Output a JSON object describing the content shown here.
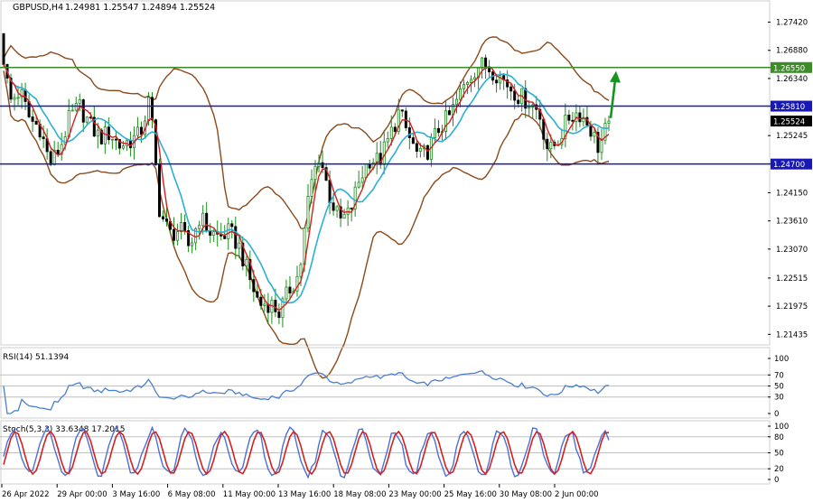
{
  "header": {
    "symbol": "GBPUSD,H4",
    "ohlc": "1.24981 1.25547 1.24894 1.25524"
  },
  "colors": {
    "candle": "#1e8c1e",
    "bollinger": "#8b4a1a",
    "ma_fast": "#d42020",
    "ma_slow": "#2ab0d4",
    "hline_green": "#3c8c28",
    "hline_blue": "#1818b4",
    "rsi_line": "#4a7fd0",
    "stoch_main": "#4a6fd8",
    "stoch_signal": "#d42020",
    "arrow": "#14961e"
  },
  "chart_data": [
    {
      "type": "candlestick",
      "panel": "main",
      "y_axis_ticks": [
        "1.27420",
        "1.26880",
        "1.26340",
        "1.25810",
        "1.25245",
        "1.24700",
        "1.24150",
        "1.23610",
        "1.23070",
        "1.22515",
        "1.21975",
        "1.21435"
      ],
      "ylim": [
        1.2125,
        1.2781
      ],
      "x_axis_labels": [
        "26 Apr 2022",
        "29 Apr 00:00",
        "3 May 16:00",
        "6 May 08:00",
        "11 May 00:00",
        "13 May 16:00",
        "18 May 08:00",
        "23 May 00:00",
        "25 May 16:00",
        "30 May 08:00",
        "2 Jun 00:00"
      ],
      "price_path": [
        1.272,
        1.259,
        1.261,
        1.2555,
        1.254,
        1.247,
        1.25,
        1.256,
        1.258,
        1.2545,
        1.252,
        1.253,
        1.2505,
        1.2515,
        1.2525,
        1.2595,
        1.238,
        1.2335,
        1.2345,
        1.231,
        1.237,
        1.234,
        1.233,
        1.234,
        1.231,
        1.225,
        1.22,
        1.2205,
        1.2185,
        1.223,
        1.226,
        1.242,
        1.249,
        1.241,
        1.236,
        1.2375,
        1.244,
        1.248,
        1.2475,
        1.252,
        1.257,
        1.252,
        1.248,
        1.25,
        1.254,
        1.256,
        1.26,
        1.264,
        1.266,
        1.2655,
        1.264,
        1.262,
        1.26,
        1.259,
        1.257,
        1.249,
        1.252,
        1.256,
        1.257,
        1.2545,
        1.25,
        1.2552
      ],
      "last_price": "1.25524",
      "horizontal_levels": [
        {
          "label": "1.26550",
          "value": 1.2655,
          "color": "green"
        },
        {
          "label": "1.25810",
          "value": 1.2581,
          "color": "blue"
        },
        {
          "label": "1.24700",
          "value": 1.247,
          "color": "blue"
        }
      ],
      "indicators": [
        "Bollinger Bands",
        "Fast MA (red)",
        "Slow MA (cyan)"
      ],
      "annotation": "green arrow pointing up from about 1.2555 toward 1.2655"
    },
    {
      "type": "line",
      "panel": "rsi",
      "title": "RSI(14) 51.1394",
      "y_axis_ticks": [
        "100",
        "70",
        "50",
        "30",
        "0"
      ],
      "levels": [
        70,
        50,
        30
      ],
      "ylim": [
        0,
        100
      ]
    },
    {
      "type": "line",
      "panel": "stochastic",
      "title": "Stoch(5,3,3) 33.6348 17.2015",
      "y_axis_ticks": [
        "100",
        "80",
        "50",
        "20",
        "0"
      ],
      "levels": [
        80,
        50,
        20
      ],
      "ylim": [
        0,
        100
      ],
      "main_period": 9.6,
      "signal_lag": 0.9
    }
  ]
}
